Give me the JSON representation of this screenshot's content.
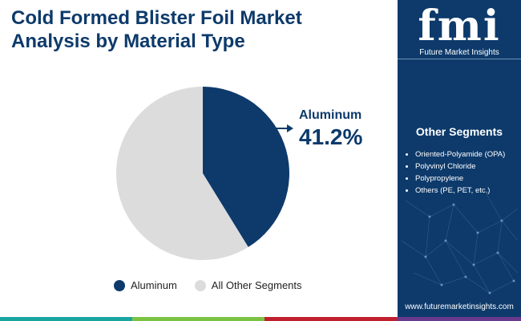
{
  "title_lines": [
    "Cold Formed Blister Foil Market",
    "Analysis by Material Type"
  ],
  "chart_data": {
    "type": "pie",
    "title": "Cold Formed Blister Foil Market Analysis by Material Type",
    "categories": [
      "Aluminum",
      "All Other Segments"
    ],
    "values": [
      41.2,
      58.8
    ],
    "colors": [
      "#0d3a6b",
      "#dcdcdc"
    ],
    "legend_position": "bottom"
  },
  "callout": {
    "name": "Aluminum",
    "value": "41.2%"
  },
  "legend": [
    {
      "label": "Aluminum",
      "color": "#0d3a6b"
    },
    {
      "label": "All Other Segments",
      "color": "#dcdcdc"
    }
  ],
  "sidebar": {
    "logo_mark": "fmi",
    "logo_tagline": "Future Market Insights",
    "segments_title": "Other Segments",
    "segments": [
      "Oriented-Polyamide (OPA)",
      "Polyvinyl Chloride",
      "Polypropylene",
      "Others (PE, PET, etc.)"
    ],
    "website": "www.futuremarketinsights.com"
  },
  "colors": {
    "brand_navy": "#0d3a6b",
    "bar_teal": "#1aa6a0",
    "bar_green": "#7cc242",
    "bar_red": "#c0202e",
    "bar_purple": "#6a3a8f"
  }
}
